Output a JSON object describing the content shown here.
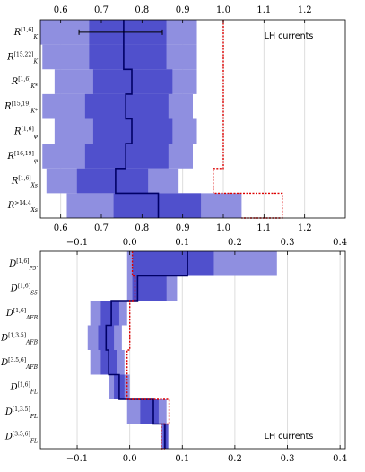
{
  "colors": {
    "outer": "#8f8fe0",
    "inner": "#5050cc",
    "central": "#000066",
    "bound": "#dd0000",
    "grid": "#dddddd"
  },
  "chart_data": [
    {
      "type": "bar",
      "annotation": "LH currents",
      "xlim": [
        0.55,
        1.3
      ],
      "xticks": [
        0.6,
        0.7,
        0.8,
        0.9,
        1.0,
        1.1,
        1.2
      ],
      "xtick_labels_top": [
        "0.6",
        "0.7",
        "0.8",
        "0.9",
        "1.0",
        "1.1",
        "1.2"
      ],
      "xtick_labels_bottom": [
        "0.6",
        "0.7",
        "0.8",
        "0.9",
        "1.0",
        "1.1",
        "1.2"
      ],
      "rows": [
        {
          "sym": "R",
          "sub": "K",
          "sup": "[1,6]",
          "outer": [
            0.55,
            0.935
          ],
          "inner": [
            0.67,
            0.86
          ],
          "central": 0.755
        },
        {
          "sym": "R",
          "sub": "K",
          "sup": "[15,22]",
          "outer": [
            0.555,
            0.935
          ],
          "inner": [
            0.67,
            0.86
          ],
          "central": 0.755
        },
        {
          "sym": "R",
          "sub": "K*",
          "sup": "[1,6]",
          "outer": [
            0.585,
            0.935
          ],
          "inner": [
            0.68,
            0.875
          ],
          "central": 0.775
        },
        {
          "sym": "R",
          "sub": "K*",
          "sup": "[15,19]",
          "outer": [
            0.555,
            0.925
          ],
          "inner": [
            0.66,
            0.865
          ],
          "central": 0.76
        },
        {
          "sym": "R",
          "sub": "φ",
          "sup": "[1,6]",
          "outer": [
            0.585,
            0.935
          ],
          "inner": [
            0.68,
            0.875
          ],
          "central": 0.775
        },
        {
          "sym": "R",
          "sub": "φ",
          "sup": "[16,19]",
          "outer": [
            0.555,
            0.925
          ],
          "inner": [
            0.66,
            0.865
          ],
          "central": 0.76
        },
        {
          "sym": "R",
          "sub": "Xs",
          "sup": "[1,6]",
          "outer": [
            0.565,
            0.89
          ],
          "inner": [
            0.64,
            0.815
          ],
          "central": 0.735
        },
        {
          "sym": "R",
          "sub": "Xs",
          "sup": ">14.4",
          "outer": [
            0.615,
            1.045
          ],
          "inner": [
            0.73,
            0.945
          ],
          "central": 0.84
        }
      ],
      "bound": [
        1.0,
        1.0,
        1.0,
        1.0,
        1.0,
        1.0,
        0.975,
        1.145
      ],
      "errorbar": {
        "row": 0,
        "x": 0.755,
        "low": 0.645,
        "high": 0.85
      }
    },
    {
      "type": "bar",
      "annotation": "LH currents",
      "xlim": [
        -0.17,
        0.41
      ],
      "xticks": [
        -0.1,
        0.0,
        0.1,
        0.2,
        0.3,
        0.4
      ],
      "xtick_labels_top": [
        "−0.1",
        "0.0",
        "0.1",
        "0.2",
        "0.3",
        "0.4"
      ],
      "xtick_labels_bottom": [
        "−0.1",
        "0.0",
        "0.1",
        "0.2",
        "0.3",
        "0.4"
      ],
      "rows": [
        {
          "sym": "D",
          "sub": "P5'",
          "sup": "[1,6]",
          "outer": [
            -0.005,
            0.28
          ],
          "inner": [
            0.005,
            0.16
          ],
          "central": 0.11
        },
        {
          "sym": "D",
          "sub": "S5",
          "sup": "[1,6]",
          "outer": [
            -0.005,
            0.09
          ],
          "inner": [
            0.005,
            0.07
          ],
          "central": 0.015
        },
        {
          "sym": "D",
          "sub": "AFB",
          "sup": "[1,6]",
          "outer": [
            -0.075,
            -0.005
          ],
          "inner": [
            -0.055,
            -0.02
          ],
          "central": -0.035
        },
        {
          "sym": "D",
          "sub": "AFB",
          "sup": "[1,3.5]",
          "outer": [
            -0.08,
            -0.015
          ],
          "inner": [
            -0.06,
            -0.03
          ],
          "central": -0.045
        },
        {
          "sym": "D",
          "sub": "AFB",
          "sup": "[3.5,6]",
          "outer": [
            -0.075,
            -0.01
          ],
          "inner": [
            -0.055,
            -0.025
          ],
          "central": -0.04
        },
        {
          "sym": "D",
          "sub": "FL",
          "sup": "[1,6]",
          "outer": [
            -0.04,
            0.0
          ],
          "inner": [
            -0.03,
            -0.01
          ],
          "central": -0.02
        },
        {
          "sym": "D",
          "sub": "FL",
          "sup": "[1,3.5]",
          "outer": [
            -0.005,
            0.07
          ],
          "inner": [
            0.02,
            0.055
          ],
          "central": 0.045
        },
        {
          "sym": "D",
          "sub": "FL",
          "sup": "[3.5,6]",
          "outer": [
            0.06,
            0.075
          ],
          "inner": [
            0.063,
            0.072
          ],
          "central": 0.067
        }
      ],
      "bound": [
        0.005,
        0.01,
        0.0,
        0.0,
        -0.005,
        -0.005,
        0.075,
        0.06
      ]
    }
  ]
}
